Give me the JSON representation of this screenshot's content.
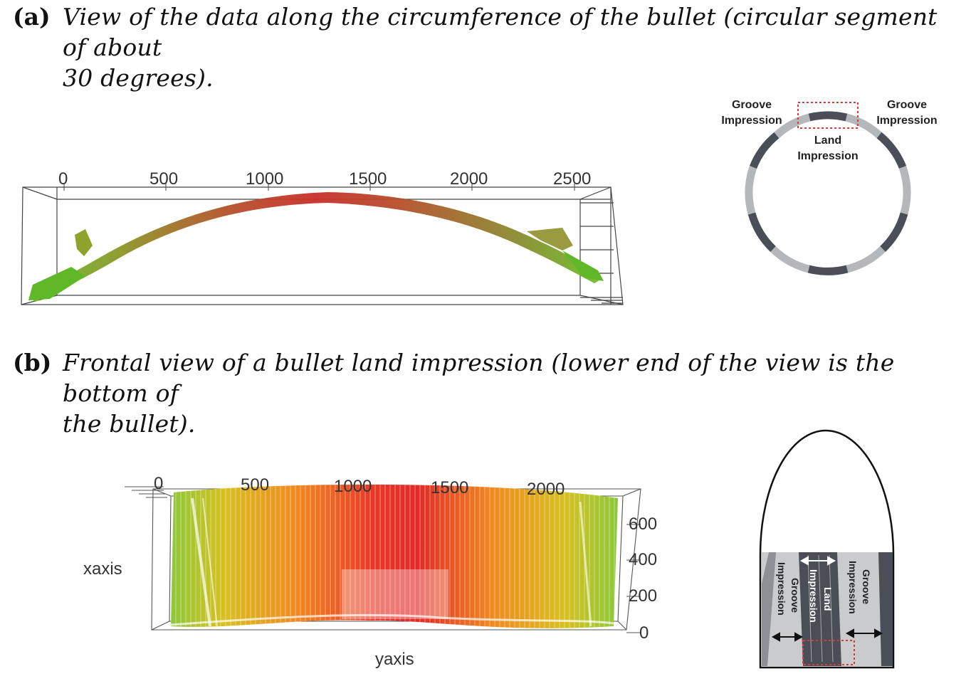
{
  "panel_a": {
    "label": "(a)",
    "caption_line1": "View of the data along the circumference of the bullet (circular segment of about",
    "caption_line2": "30 degrees).",
    "ticks": [
      "0",
      "500",
      "1000",
      "1500",
      "2000",
      "2500"
    ],
    "diagram": {
      "groove_left_line1": "Groove",
      "groove_left_line2": "Impression",
      "groove_right_line1": "Groove",
      "groove_right_line2": "Impression",
      "land_line1": "Land",
      "land_line2": "Impression"
    }
  },
  "panel_b": {
    "label": "(b)",
    "caption_line1": "Frontal view of a bullet land impression (lower end of the view is the bottom of",
    "caption_line2": "the bullet).",
    "x_ticks": [
      "0",
      "500",
      "1000",
      "1500",
      "2000"
    ],
    "z_ticks": [
      "600",
      "400",
      "200",
      "0"
    ],
    "xaxis_label": "xaxis",
    "yaxis_label": "yaxis",
    "diagram": {
      "groove_left_line1": "Groove",
      "groove_left_line2": "Impression",
      "groove_right_line1": "Groove",
      "groove_right_line2": "Impression",
      "land_line1": "Land",
      "land_line2": "Impression"
    }
  },
  "colors": {
    "surface_high": "#e0202a",
    "surface_mid": "#f08a20",
    "surface_low": "#8ac83a",
    "land_dark": "#4a4f57",
    "groove_light": "#b5b8bb",
    "highlight_box": "#e0383a"
  }
}
